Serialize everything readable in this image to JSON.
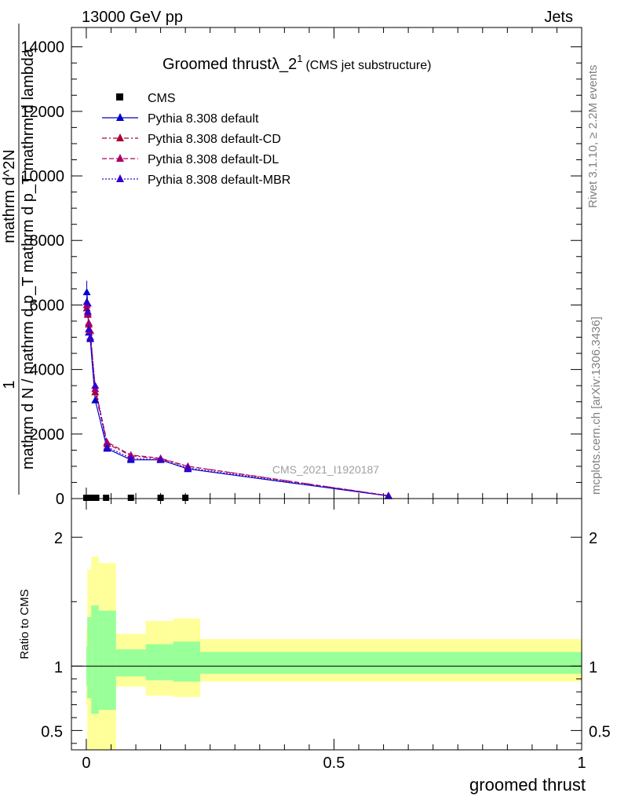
{
  "header": {
    "energy": "13000 GeV pp",
    "category": "Jets"
  },
  "side": {
    "rivet": "Rivet 3.1.10, ≥ 2.2M events",
    "url": "mcplots.cern.ch [arXiv:1306.3436]"
  },
  "chart_data": [
    {
      "type": "line",
      "title_main": "Groomed thrustλ_2",
      "title_sup": "1",
      "title_sub": "(CMS jet substructure)",
      "watermark": "CMS_2021_I1920187",
      "ylabel_numerator": "1",
      "ylabel_denominator": "mathrm d N / mathrm d p_T mathrm d p_T mathrm d lambda",
      "ylabel_extra": "mathrm d^2N",
      "xlabel": "groomed thrust",
      "xlim": [
        -0.03,
        1.0
      ],
      "ylim": [
        0,
        14600
      ],
      "yticks": [
        0,
        2000,
        4000,
        6000,
        8000,
        10000,
        12000,
        14000
      ],
      "ytick_labels": [
        "0",
        "2000",
        "4000",
        "6000",
        "8000",
        "10000",
        "12000",
        "14000"
      ],
      "xticks": [
        0,
        0.5,
        1
      ],
      "xtick_labels": [
        "0",
        "0.5",
        "1"
      ],
      "legend_position": "top-left",
      "series": [
        {
          "name": "CMS",
          "color": "#000000",
          "marker": "square",
          "x": [
            0.0,
            0.004,
            0.008,
            0.013,
            0.02,
            0.04,
            0.09,
            0.15,
            0.2
          ],
          "y": [
            0,
            0,
            0,
            0,
            0,
            0,
            0,
            0,
            0
          ]
        },
        {
          "name": "Pythia 8.308 default",
          "color": "#0000cc",
          "dash": "solid",
          "marker": "triangle",
          "x": [
            0.001,
            0.003,
            0.005,
            0.008,
            0.018,
            0.042,
            0.09,
            0.15,
            0.205,
            0.61
          ],
          "y": [
            6400,
            6050,
            5150,
            4950,
            3050,
            1550,
            1200,
            1200,
            920,
            80
          ]
        },
        {
          "name": "Pythia 8.308 default-CD",
          "color": "#aa0033",
          "dash": "dashdot",
          "marker": "triangle",
          "x": [
            0.001,
            0.003,
            0.005,
            0.008,
            0.018,
            0.042,
            0.09,
            0.15,
            0.205,
            0.61
          ],
          "y": [
            5900,
            5700,
            5400,
            5200,
            3300,
            1700,
            1330,
            1230,
            1000,
            90
          ]
        },
        {
          "name": "Pythia 8.308 default-DL",
          "color": "#aa0066",
          "dash": "dashed",
          "marker": "triangle",
          "x": [
            0.001,
            0.003,
            0.005,
            0.008,
            0.018,
            0.042,
            0.09,
            0.15,
            0.205,
            0.61
          ],
          "y": [
            6000,
            5750,
            5450,
            5200,
            3400,
            1750,
            1350,
            1250,
            1000,
            90
          ]
        },
        {
          "name": "Pythia 8.308 default-MBR",
          "color": "#3300cc",
          "dash": "dotted",
          "marker": "triangle",
          "x": [
            0.001,
            0.003,
            0.005,
            0.008,
            0.018,
            0.042,
            0.09,
            0.15,
            0.205,
            0.61
          ],
          "y": [
            6100,
            5800,
            5250,
            5000,
            3500,
            1600,
            1250,
            1200,
            950,
            85
          ]
        }
      ]
    },
    {
      "type": "area",
      "ylabel": "Ratio to CMS",
      "xlabel": "groomed thrust",
      "xlim": [
        -0.03,
        1.0
      ],
      "ylim": [
        0.35,
        2.3
      ],
      "yticks": [
        0.5,
        1,
        2
      ],
      "ytick_labels": [
        "0.5",
        "1",
        "2"
      ],
      "reference_line": 1,
      "bands": {
        "yellow_color": "#ffff99",
        "green_color": "#99ff99",
        "bins": [
          {
            "x0": 0.0,
            "x1": 0.002,
            "yellow": [
              0.7,
              1.3
            ],
            "green": [
              0.85,
              1.15
            ]
          },
          {
            "x0": 0.002,
            "x1": 0.01,
            "yellow": [
              0.3,
              1.75
            ],
            "green": [
              0.75,
              1.38
            ]
          },
          {
            "x0": 0.01,
            "x1": 0.025,
            "yellow": [
              0.3,
              1.85
            ],
            "green": [
              0.63,
              1.47
            ]
          },
          {
            "x0": 0.025,
            "x1": 0.06,
            "yellow": [
              0.3,
              1.8
            ],
            "green": [
              0.66,
              1.43
            ]
          },
          {
            "x0": 0.06,
            "x1": 0.12,
            "yellow": [
              0.84,
              1.25
            ],
            "green": [
              0.92,
              1.13
            ]
          },
          {
            "x0": 0.12,
            "x1": 0.175,
            "yellow": [
              0.77,
              1.35
            ],
            "green": [
              0.89,
              1.17
            ]
          },
          {
            "x0": 0.175,
            "x1": 0.23,
            "yellow": [
              0.76,
              1.37
            ],
            "green": [
              0.88,
              1.19
            ]
          },
          {
            "x0": 0.23,
            "x1": 1.0,
            "yellow": [
              0.88,
              1.21
            ],
            "green": [
              0.94,
              1.11
            ]
          }
        ]
      }
    }
  ]
}
